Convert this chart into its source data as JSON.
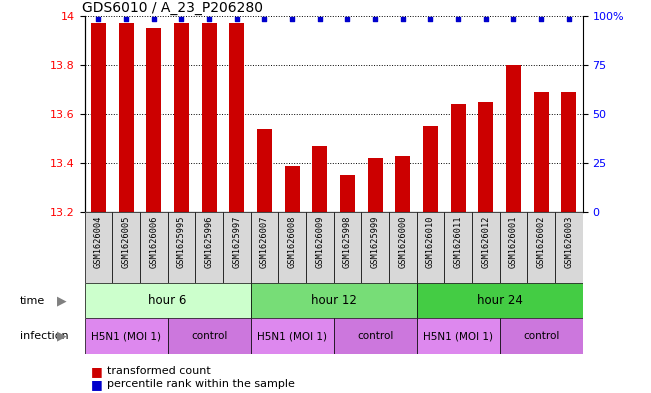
{
  "title": "GDS6010 / A_23_P206280",
  "samples": [
    "GSM1626004",
    "GSM1626005",
    "GSM1626006",
    "GSM1625995",
    "GSM1625996",
    "GSM1625997",
    "GSM1626007",
    "GSM1626008",
    "GSM1626009",
    "GSM1625998",
    "GSM1625999",
    "GSM1626000",
    "GSM1626010",
    "GSM1626011",
    "GSM1626012",
    "GSM1626001",
    "GSM1626002",
    "GSM1626003"
  ],
  "bar_values": [
    13.97,
    13.97,
    13.95,
    13.97,
    13.97,
    13.97,
    13.54,
    13.39,
    13.47,
    13.35,
    13.42,
    13.43,
    13.55,
    13.64,
    13.65,
    13.8,
    13.69,
    13.69
  ],
  "ymin": 13.2,
  "ymax": 14.0,
  "yticks": [
    13.2,
    13.4,
    13.6,
    13.8,
    14.0
  ],
  "ytick_labels": [
    "13.2",
    "13.4",
    "13.6",
    "13.8",
    "14"
  ],
  "right_yticks": [
    0,
    25,
    50,
    75,
    100
  ],
  "right_ytick_labels": [
    "0",
    "25",
    "50",
    "75",
    "100%"
  ],
  "bar_color": "#cc0000",
  "dot_color": "#0000cc",
  "time_labels": [
    "hour 6",
    "hour 12",
    "hour 24"
  ],
  "time_starts": [
    0,
    6,
    12
  ],
  "time_ends": [
    6,
    12,
    18
  ],
  "time_colors": [
    "#ccffcc",
    "#77dd77",
    "#44cc44"
  ],
  "inf_labels": [
    "H5N1 (MOI 1)",
    "control",
    "H5N1 (MOI 1)",
    "control",
    "H5N1 (MOI 1)",
    "control"
  ],
  "inf_starts": [
    0,
    3,
    6,
    9,
    12,
    15
  ],
  "inf_ends": [
    3,
    6,
    9,
    12,
    15,
    18
  ],
  "inf_colors": [
    "#dd88ee",
    "#cc77dd",
    "#dd88ee",
    "#cc77dd",
    "#dd88ee",
    "#cc77dd"
  ],
  "sample_bg": "#d8d8d8",
  "label_time": "time",
  "label_infection": "infection",
  "legend_bar": "transformed count",
  "legend_dot": "percentile rank within the sample"
}
